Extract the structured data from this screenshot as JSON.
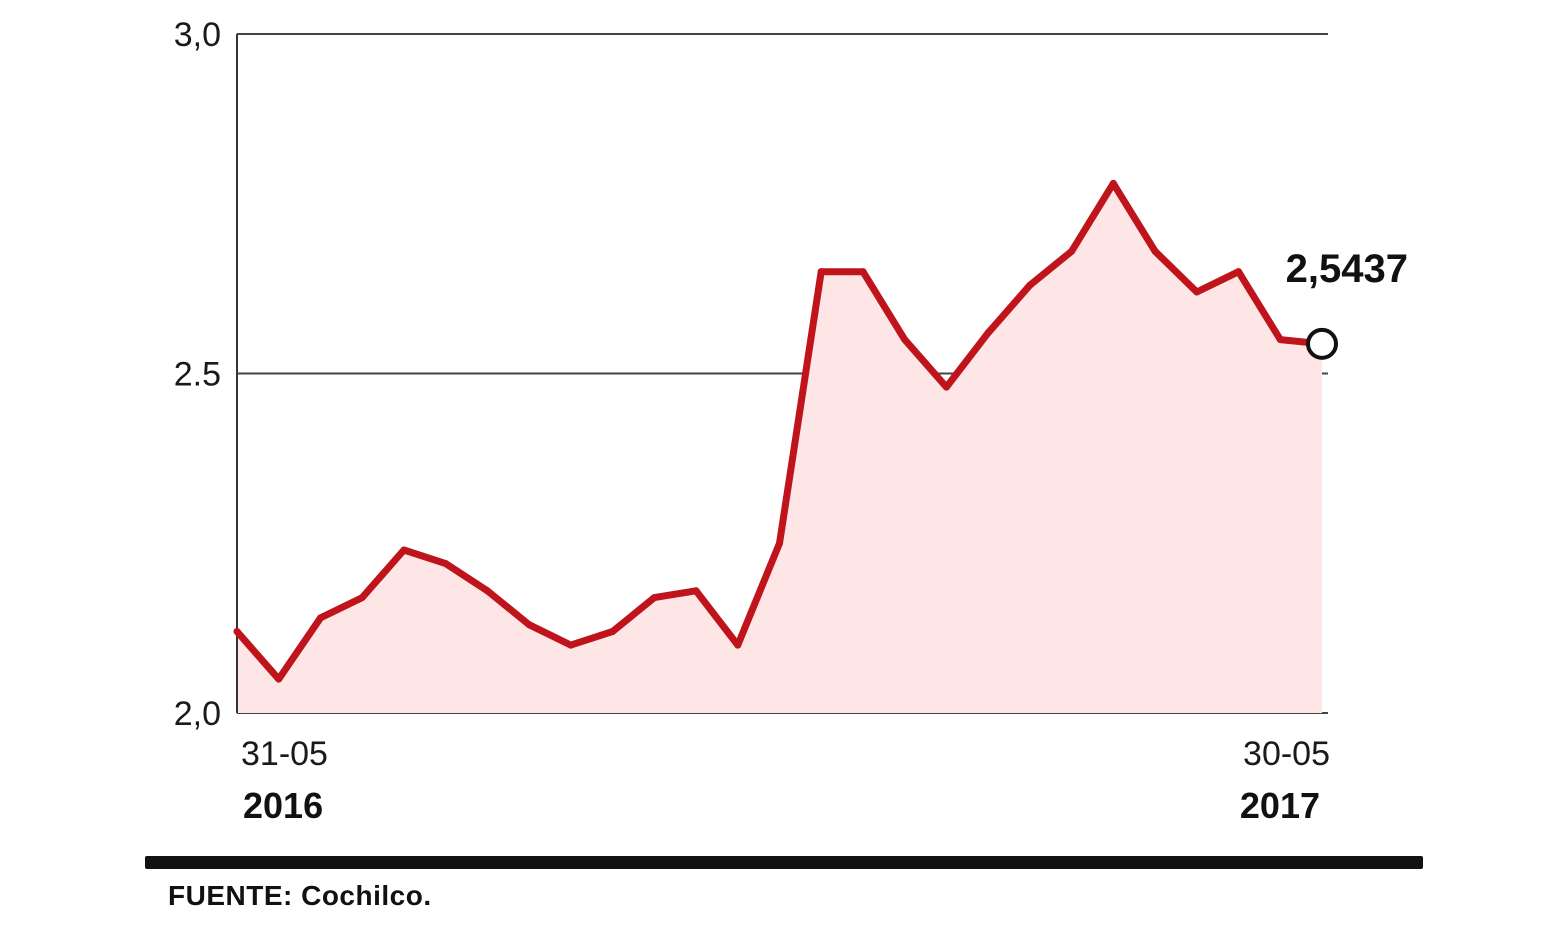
{
  "chart_data": {
    "type": "area",
    "title": "",
    "xlabel": "",
    "ylabel": "",
    "ylim": [
      2.0,
      3.0
    ],
    "y_ticks": [
      "3,0",
      "2.5",
      "2,0"
    ],
    "x_tick_labels": [
      {
        "day_month": "31-05",
        "year": "2016"
      },
      {
        "day_month": "30-05",
        "year": "2017"
      }
    ],
    "last_value_label": "2,5437",
    "line_color": "#c0141c",
    "fill_color": "#fde6e5",
    "grid": "horizontal",
    "x": [
      "2016-05-31",
      "2016-06-14",
      "2016-06-28",
      "2016-07-12",
      "2016-07-26",
      "2016-08-09",
      "2016-08-23",
      "2016-09-06",
      "2016-09-20",
      "2016-10-04",
      "2016-10-18",
      "2016-11-01",
      "2016-11-15",
      "2016-11-29",
      "2016-12-13",
      "2016-12-27",
      "2017-01-10",
      "2017-01-24",
      "2017-02-07",
      "2017-02-21",
      "2017-03-07",
      "2017-03-21",
      "2017-04-04",
      "2017-04-18",
      "2017-05-02",
      "2017-05-16",
      "2017-05-30"
    ],
    "values": [
      2.12,
      2.05,
      2.14,
      2.17,
      2.24,
      2.22,
      2.18,
      2.13,
      2.1,
      2.12,
      2.17,
      2.18,
      2.1,
      2.25,
      2.65,
      2.65,
      2.55,
      2.48,
      2.56,
      2.63,
      2.68,
      2.78,
      2.68,
      2.62,
      2.65,
      2.55,
      2.5437
    ]
  },
  "source": "FUENTE: Cochilco."
}
